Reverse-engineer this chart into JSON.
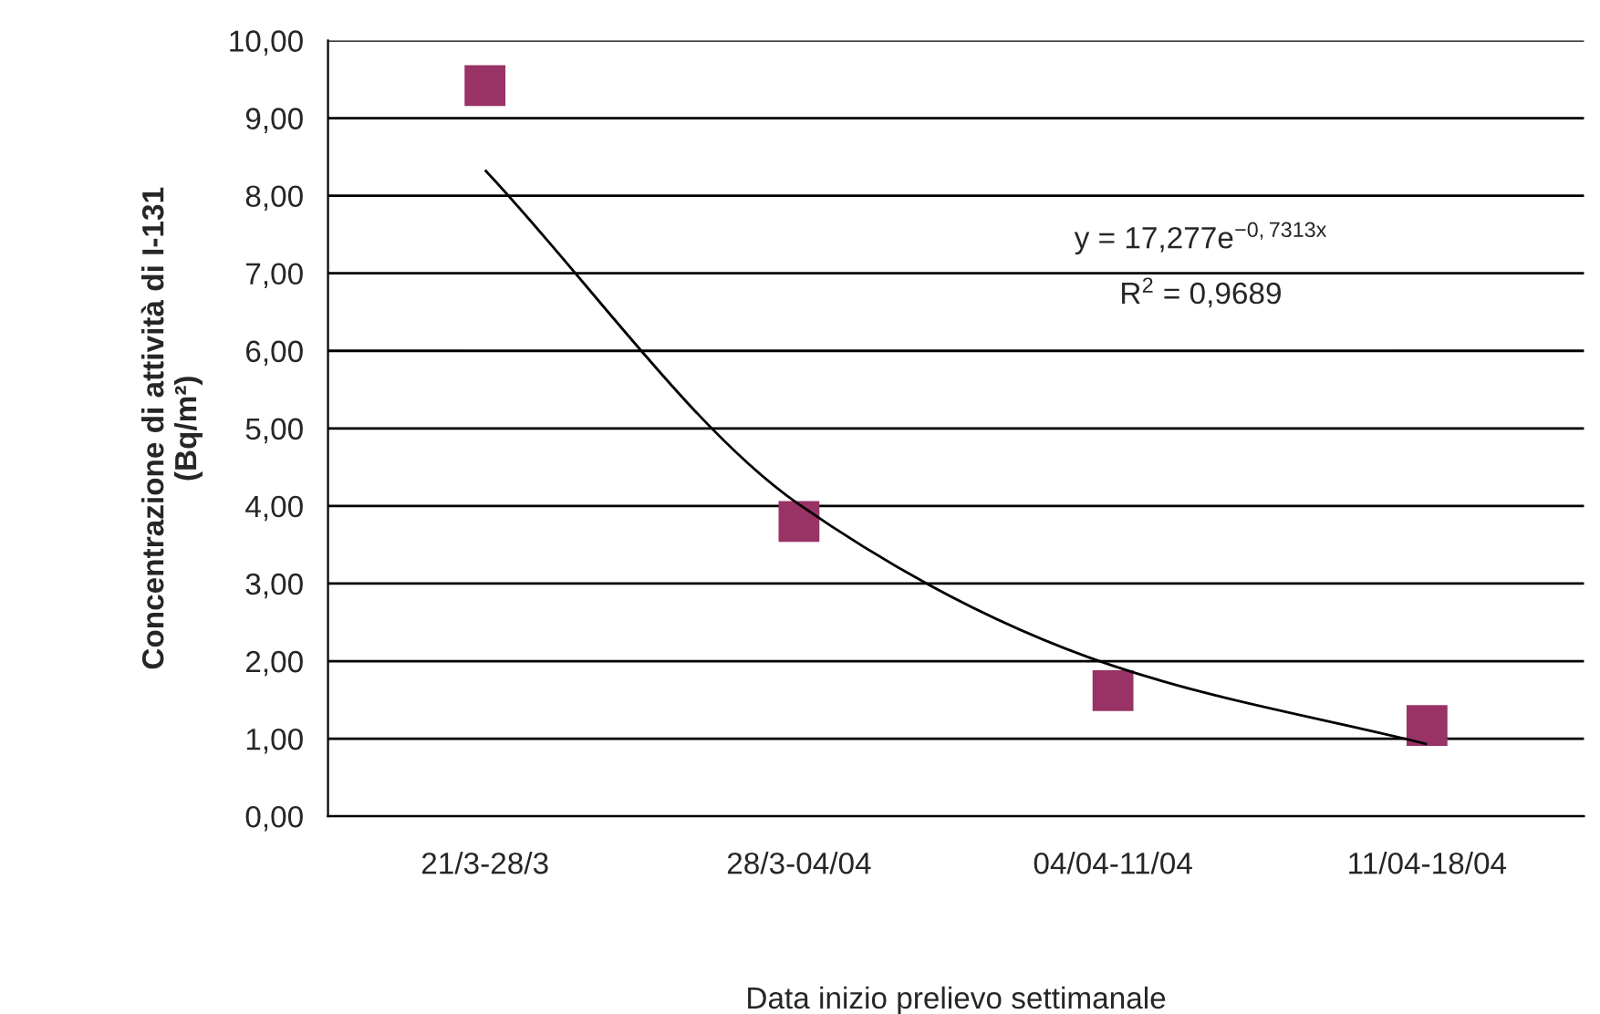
{
  "chart_data": {
    "type": "scatter",
    "xlabel": "Data inizio prelievo settimanale",
    "ylabel": "Concentrazione di attività di I-131\n(Bq/m²)",
    "categories": [
      "21/3-28/3",
      "28/3-04/04",
      "04/04-11/04",
      "11/04-18/04"
    ],
    "series": [
      {
        "color": "#993366",
        "marker": "square",
        "values": [
          9.42,
          3.8,
          1.62,
          1.17
        ]
      },
      {
        "type": "line",
        "color": "#000000",
        "marker": "none",
        "line_style": "solid",
        "values": [
          8.33,
          4.02,
          1.94,
          0.93
        ]
      }
    ],
    "ylim": [
      0,
      10
    ],
    "yticks": [
      {
        "value": 0,
        "label": "0,00"
      },
      {
        "value": 1,
        "label": "1,00"
      },
      {
        "value": 2,
        "label": "2,00"
      },
      {
        "value": 3,
        "label": "3,00"
      },
      {
        "value": 4,
        "label": "4,00"
      },
      {
        "value": 5,
        "label": "5,00"
      },
      {
        "value": 6,
        "label": "6,00"
      },
      {
        "value": 7,
        "label": "7,00"
      },
      {
        "value": 8,
        "label": "8,00"
      },
      {
        "value": 9,
        "label": "9,00"
      },
      {
        "value": 10,
        "label": "10,00"
      }
    ],
    "grid": "y",
    "annotations": [
      "y = 17,277e$^{−0,7313x}$",
      "R$^{2}$ = 0,9689"
    ]
  }
}
